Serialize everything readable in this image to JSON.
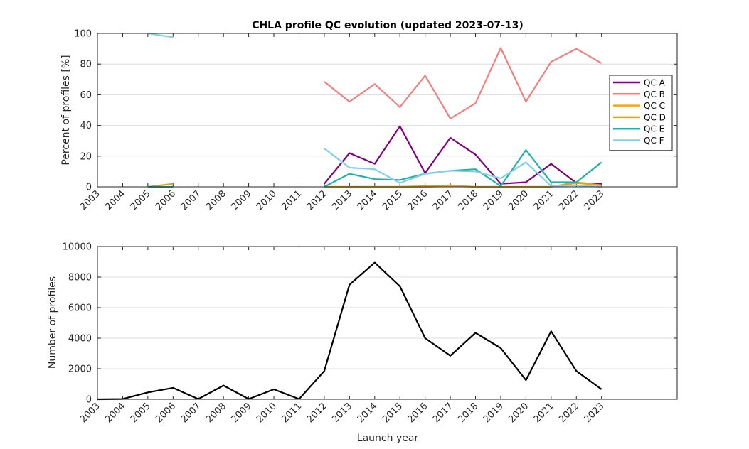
{
  "chart_data": [
    {
      "type": "line",
      "title": "CHLA profile QC evolution (updated 2023-07-13)",
      "xlabel": "",
      "ylabel": "Percent of profiles [%]",
      "xlim": [
        2003,
        2026
      ],
      "ylim": [
        0,
        100
      ],
      "yticks": [
        0,
        20,
        40,
        60,
        80,
        100
      ],
      "xtick_labels": [
        "2003",
        "2004",
        "2005",
        "2006",
        "2007",
        "2008",
        "2009",
        "2010",
        "2011",
        "2012",
        "2013",
        "2014",
        "2015",
        "2016",
        "2017",
        "2018",
        "2019",
        "2020",
        "2021",
        "2022",
        "2023"
      ],
      "grid": "horizontal",
      "legend_position": "right",
      "series": [
        {
          "name": "QC A",
          "color": "#800080",
          "segments": [
            {
              "x": [
                2012,
                2013,
                2014,
                2015,
                2016,
                2017,
                2018,
                2019,
                2020,
                2021,
                2022,
                2023
              ],
              "y": [
                2,
                22,
                15,
                39.5,
                9,
                32,
                21,
                2,
                3,
                15,
                2.5,
                2
              ]
            }
          ]
        },
        {
          "name": "QC B",
          "color": "#f08080",
          "segments": [
            {
              "x": [
                2012,
                2013,
                2014,
                2015,
                2016,
                2017,
                2018,
                2019,
                2020,
                2021,
                2022,
                2023
              ],
              "y": [
                68.5,
                55.5,
                67,
                52,
                72.5,
                44.5,
                54.5,
                90.5,
                55.5,
                81.5,
                90,
                80.5
              ]
            }
          ]
        },
        {
          "name": "QC C",
          "color": "#ffa500",
          "segments": [
            {
              "x": [
                2012,
                2013,
                2014,
                2015,
                2016,
                2017,
                2018,
                2019,
                2020,
                2021,
                2022,
                2023
              ],
              "y": [
                0,
                0,
                0,
                0,
                0,
                0.5,
                0,
                0,
                0,
                0,
                2.5,
                1
              ]
            }
          ]
        },
        {
          "name": "QC D",
          "color": "#daa520",
          "segments": [
            {
              "x": [
                2005,
                2006
              ],
              "y": [
                0,
                2
              ]
            },
            {
              "x": [
                2012,
                2013,
                2014,
                2015,
                2016,
                2017,
                2018,
                2019,
                2020,
                2021,
                2022,
                2023
              ],
              "y": [
                0,
                0,
                0,
                0,
                0.5,
                1,
                0,
                0,
                0,
                0,
                3,
                1
              ]
            }
          ]
        },
        {
          "name": "QC E",
          "color": "#20b2aa",
          "segments": [
            {
              "x": [
                2005,
                2006
              ],
              "y": [
                0,
                0
              ]
            },
            {
              "x": [
                2012,
                2013,
                2014,
                2015,
                2016,
                2017,
                2018,
                2019,
                2020,
                2021,
                2022,
                2023
              ],
              "y": [
                0,
                8.5,
                5,
                4.5,
                8.5,
                10.5,
                11.5,
                0.5,
                24,
                3,
                3,
                16
              ]
            }
          ]
        },
        {
          "name": "QC F",
          "color": "#87ceeb",
          "segments": [
            {
              "x": [
                2005,
                2006
              ],
              "y": [
                100,
                97.5
              ]
            },
            {
              "x": [
                2012,
                2013,
                2014,
                2015,
                2016,
                2017,
                2018,
                2019,
                2020,
                2021,
                2022,
                2023
              ],
              "y": [
                25,
                12.5,
                11.5,
                2.5,
                8.5,
                10.5,
                10,
                5.5,
                16,
                0.5,
                1,
                0
              ]
            }
          ]
        }
      ]
    },
    {
      "type": "line",
      "title": "",
      "xlabel": "Launch year",
      "ylabel": "Number of profiles",
      "xlim": [
        2003,
        2026
      ],
      "ylim": [
        0,
        10000
      ],
      "yticks": [
        0,
        2000,
        4000,
        6000,
        8000,
        10000
      ],
      "xtick_labels": [
        "2003",
        "2004",
        "2005",
        "2006",
        "2007",
        "2008",
        "2009",
        "2010",
        "2011",
        "2012",
        "2013",
        "2014",
        "2015",
        "2016",
        "2017",
        "2018",
        "2019",
        "2020",
        "2021",
        "2022",
        "2023"
      ],
      "grid": "horizontal",
      "series": [
        {
          "color": "#000000",
          "segments": [
            {
              "x": [
                2003,
                2004,
                2005,
                2006,
                2007,
                2008,
                2009,
                2010,
                2011,
                2012,
                2013,
                2014,
                2015,
                2016,
                2017,
                2018,
                2019,
                2020,
                2021,
                2022,
                2023
              ],
              "y": [
                0,
                20,
                450,
                750,
                20,
                900,
                20,
                650,
                20,
                1850,
                7500,
                8950,
                7400,
                4000,
                2850,
                4350,
                3350,
                1250,
                4450,
                1850,
                650
              ]
            }
          ]
        }
      ]
    }
  ]
}
